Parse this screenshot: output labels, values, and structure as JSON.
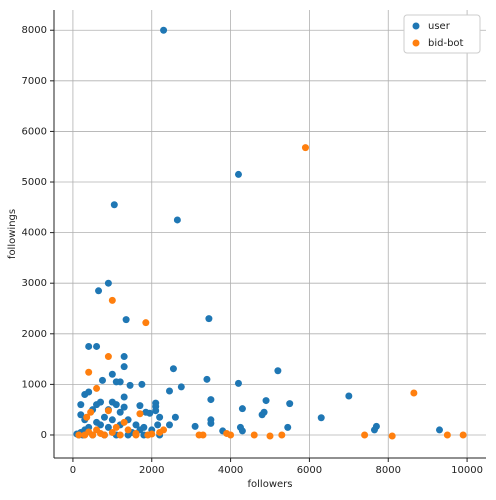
{
  "chart_data": {
    "type": "scatter",
    "xlabel": "followers",
    "ylabel": "followings",
    "xlim": [
      -480,
      10480
    ],
    "ylim": [
      -455,
      8400
    ],
    "xticks": [
      0,
      2000,
      4000,
      6000,
      8000,
      10000
    ],
    "yticks": [
      0,
      1000,
      2000,
      3000,
      4000,
      5000,
      6000,
      7000,
      8000
    ],
    "grid": true,
    "legend": "upper right",
    "series": [
      {
        "name": "user",
        "color": "#1f77b4",
        "x": [
          2300,
          4200,
          1050,
          2650,
          900,
          650,
          3450,
          1350,
          400,
          600,
          1300,
          1300,
          3400,
          4200,
          5200,
          2550,
          7000,
          5500,
          4900,
          4850,
          4800,
          4300,
          6300,
          7700,
          7650,
          9300,
          5450,
          4250,
          4300,
          3800,
          3500,
          3500,
          3500,
          2750,
          2450,
          2600,
          2450,
          3100,
          2100,
          2100,
          2100,
          2200,
          2150,
          1750,
          1700,
          1850,
          1950,
          1450,
          1300,
          1200,
          1000,
          1100,
          750,
          1000,
          1100,
          1300,
          1200,
          900,
          700,
          600,
          400,
          300,
          200,
          200,
          300,
          500,
          800,
          1000,
          1400,
          1600,
          1700,
          1800,
          2000,
          1500,
          700,
          400,
          300,
          200,
          100,
          150,
          250,
          500,
          800,
          1100,
          1400,
          1800,
          2200,
          600,
          900,
          1200
        ],
        "values": [
          8000,
          5150,
          4550,
          4250,
          3000,
          2850,
          2300,
          2280,
          1750,
          1750,
          1550,
          1350,
          1100,
          1020,
          1270,
          1310,
          770,
          620,
          680,
          450,
          400,
          520,
          340,
          170,
          100,
          100,
          150,
          150,
          80,
          80,
          300,
          230,
          700,
          950,
          870,
          350,
          200,
          170,
          630,
          560,
          480,
          350,
          200,
          1000,
          580,
          450,
          430,
          980,
          750,
          1050,
          1200,
          1050,
          1080,
          650,
          600,
          550,
          450,
          500,
          650,
          600,
          850,
          800,
          600,
          400,
          300,
          500,
          350,
          300,
          300,
          200,
          100,
          150,
          100,
          50,
          200,
          150,
          100,
          50,
          20,
          0,
          0,
          0,
          0,
          0,
          0,
          0,
          0,
          250,
          150,
          200
        ]
      },
      {
        "name": "bid-bot",
        "color": "#ff7f0e",
        "x": [
          5900,
          1000,
          1850,
          900,
          400,
          600,
          8650,
          1700,
          900,
          1300,
          450,
          350,
          2300,
          2200,
          1900,
          1600,
          1200,
          800,
          500,
          300,
          150,
          3200,
          3300,
          3900,
          4000,
          4600,
          5000,
          5300,
          7400,
          8100,
          9500,
          9900,
          1400,
          1000,
          700,
          1100,
          600,
          400,
          1600,
          2000
        ],
        "values": [
          5680,
          2660,
          2220,
          1550,
          1240,
          920,
          830,
          420,
          480,
          250,
          450,
          350,
          100,
          50,
          0,
          0,
          0,
          0,
          0,
          0,
          0,
          0,
          0,
          30,
          0,
          0,
          -20,
          0,
          0,
          -20,
          0,
          0,
          100,
          50,
          30,
          150,
          100,
          60,
          30,
          20
        ]
      }
    ]
  }
}
